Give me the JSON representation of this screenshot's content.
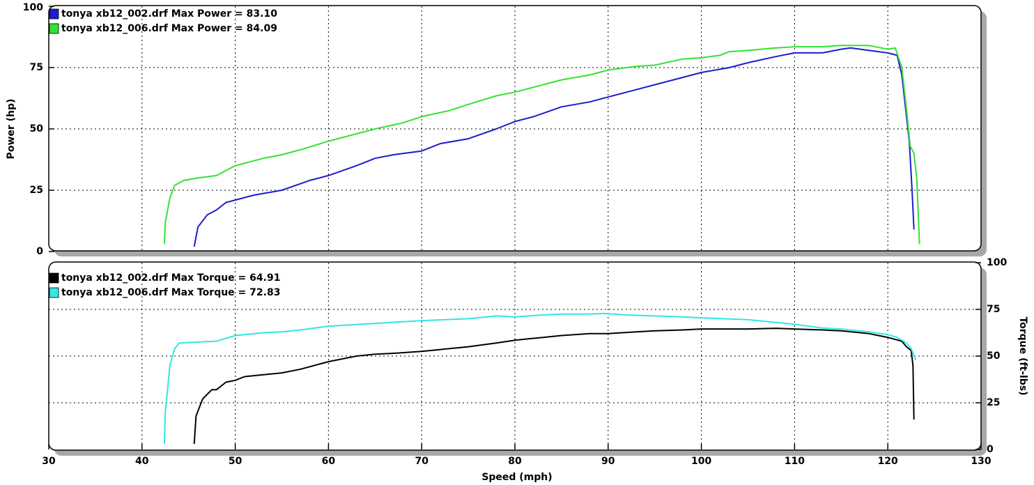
{
  "chart_data": [
    {
      "type": "line",
      "ylabel": "Power (hp)",
      "xlim": [
        30,
        130
      ],
      "xticks": [
        30,
        40,
        50,
        60,
        70,
        80,
        90,
        100,
        110,
        120,
        130
      ],
      "ylim": [
        0,
        100
      ],
      "yticks": [
        0,
        25,
        50,
        75,
        100
      ],
      "grid": true,
      "series": [
        {
          "name": "tonya xb12_002.drf Max Power = 83.10",
          "color": "#1c1ccc",
          "x": [
            45.6,
            46,
            47,
            48,
            49,
            50,
            52,
            55,
            58,
            60,
            63,
            65,
            67,
            70,
            72,
            75,
            78,
            80,
            82,
            85,
            88,
            90,
            92,
            95,
            98,
            100,
            103,
            105,
            108,
            110,
            113,
            115,
            116,
            118,
            120,
            121,
            121.5,
            122,
            122.3,
            122.6,
            122.8
          ],
          "values": [
            2,
            10,
            15,
            17,
            20,
            21,
            23,
            25,
            29,
            31,
            35,
            38,
            39.5,
            41,
            44,
            46,
            50,
            53,
            55,
            59,
            61,
            63,
            65,
            68,
            71,
            73,
            75,
            77,
            79.5,
            81,
            81,
            82.5,
            83,
            82,
            81,
            80,
            72,
            55,
            45,
            25,
            9
          ]
        },
        {
          "name": "tonya xb12_006.drf Max Power = 84.09",
          "color": "#33e233",
          "x": [
            42.4,
            42.5,
            43,
            43.5,
            44.5,
            46,
            48,
            50,
            53,
            55,
            57,
            60,
            63,
            65,
            68,
            70,
            73,
            75,
            78,
            80,
            82,
            85,
            88,
            90,
            93,
            95,
            98,
            100,
            102,
            103,
            105,
            108,
            110,
            113,
            115,
            118,
            120,
            120.8,
            121.5,
            122,
            122.4,
            122.8,
            123.1,
            123.4
          ],
          "values": [
            3,
            12,
            22,
            27,
            29,
            30,
            31,
            35,
            38,
            39.5,
            41.5,
            45,
            48,
            50,
            52.5,
            55,
            57.5,
            60,
            63.5,
            65,
            67,
            70,
            72,
            74,
            75.5,
            76,
            78.5,
            79,
            80,
            81.5,
            82,
            83,
            83.5,
            83.5,
            84,
            84,
            82.5,
            83,
            75,
            58,
            43,
            40,
            30,
            3
          ]
        }
      ]
    },
    {
      "type": "line",
      "xlabel": "Speed (mph)",
      "y2label": "Torque (ft-lbs)",
      "xlim": [
        30,
        130
      ],
      "xticks": [
        30,
        40,
        50,
        60,
        70,
        80,
        90,
        100,
        110,
        120,
        130
      ],
      "y2lim": [
        0,
        100
      ],
      "y2ticks": [
        0,
        25,
        50,
        75,
        100
      ],
      "grid": true,
      "series": [
        {
          "name": "tonya xb12_002.drf Max Torque = 64.91",
          "color": "#000000",
          "axis": "y2",
          "x": [
            45.6,
            45.8,
            46.5,
            47.5,
            48,
            49,
            50,
            51,
            53,
            55,
            57,
            60,
            63,
            65,
            67,
            70,
            72,
            75,
            78,
            80,
            83,
            85,
            88,
            90,
            93,
            95,
            98,
            100,
            103,
            105,
            108,
            110,
            113,
            115,
            118,
            120,
            121.5,
            122,
            122.5,
            122.7,
            122.8
          ],
          "values": [
            3,
            18,
            27,
            32,
            32,
            36,
            37,
            39,
            40,
            41,
            43,
            47,
            50,
            51,
            51.5,
            52.5,
            53.5,
            55,
            57,
            58.5,
            60,
            61,
            62,
            62,
            63,
            63.5,
            64,
            64.5,
            64.5,
            64.5,
            64.9,
            64.5,
            64,
            63.5,
            62,
            60,
            58,
            55,
            53,
            45,
            16
          ]
        },
        {
          "name": "tonya xb12_006.drf Max Torque = 72.83",
          "color": "#33e5e5",
          "axis": "y2",
          "x": [
            42.4,
            42.5,
            43,
            43.5,
            44,
            46,
            48,
            50,
            53,
            55,
            57,
            60,
            65,
            70,
            75,
            78,
            80,
            83,
            85,
            88,
            89.5,
            92,
            95,
            98,
            100,
            105,
            108,
            110,
            113,
            115,
            118,
            120,
            121,
            122,
            122.5,
            123
          ],
          "values": [
            3,
            20,
            45,
            54,
            57,
            57.5,
            58,
            61,
            62.5,
            63,
            64,
            66,
            67.5,
            69,
            70,
            71.5,
            71,
            72,
            72.5,
            72.5,
            72.8,
            72,
            71.5,
            71,
            70.5,
            69.5,
            68,
            67,
            65,
            64.5,
            63,
            61.5,
            60,
            57,
            54,
            48
          ]
        }
      ]
    }
  ]
}
